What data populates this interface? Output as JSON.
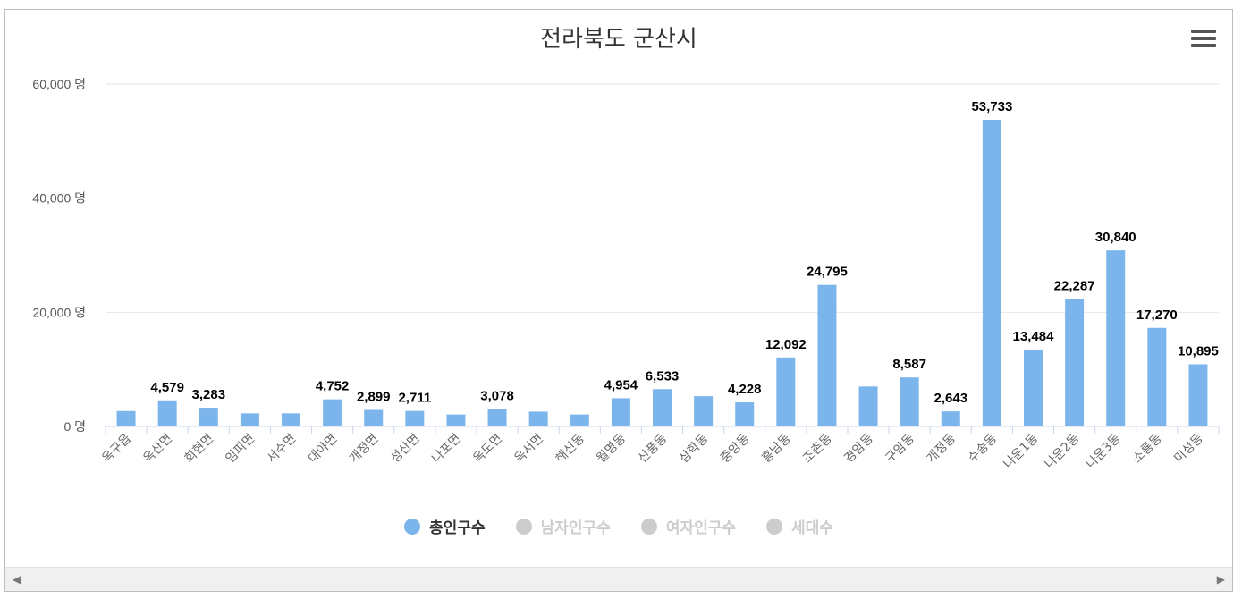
{
  "chart_data": {
    "type": "bar",
    "title": "전라북도 군산시",
    "categories": [
      "옥구읍",
      "옥산면",
      "회현면",
      "임피면",
      "서수면",
      "대야면",
      "개정면",
      "성산면",
      "나포면",
      "옥도면",
      "옥서면",
      "해신동",
      "월명동",
      "신풍동",
      "삼학동",
      "중앙동",
      "흥남동",
      "조촌동",
      "경암동",
      "구암동",
      "개정동",
      "수송동",
      "나운1동",
      "나운2동",
      "나운3동",
      "소룡동",
      "미성동"
    ],
    "series": [
      {
        "name": "총인구수",
        "color": "#7cb5ec",
        "values": [
          2700,
          4579,
          3283,
          2300,
          2300,
          4752,
          2899,
          2711,
          2100,
          3078,
          2600,
          2100,
          4954,
          6533,
          5300,
          4228,
          12092,
          24795,
          7000,
          8587,
          2643,
          53733,
          13484,
          22287,
          30840,
          17270,
          10895
        ]
      }
    ],
    "data_labels": [
      "",
      "4,579",
      "3,283",
      "",
      "",
      "4,752",
      "2,899",
      "2,711",
      "",
      "3,078",
      "",
      "",
      "4,954",
      "6,533",
      "",
      "4,228",
      "12,092",
      "24,795",
      "",
      "8,587",
      "2,643",
      "53,733",
      "13,484",
      "22,287",
      "30,840",
      "17,270",
      "10,895"
    ],
    "ylim": [
      0,
      60000
    ],
    "yticks": [
      0,
      20000,
      40000,
      60000
    ],
    "ytick_labels": [
      "0 명",
      "20,000 명",
      "40,000 명",
      "60,000 명"
    ],
    "grid": true,
    "legend_position": "bottom-center"
  },
  "legend": [
    {
      "label": "총인구수",
      "color": "#7cb5ec",
      "active": true
    },
    {
      "label": "남자인구수",
      "color": "#cccccc",
      "active": false
    },
    {
      "label": "여자인구수",
      "color": "#cccccc",
      "active": false
    },
    {
      "label": "세대수",
      "color": "#cccccc",
      "active": false
    }
  ],
  "menu_icon": "hamburger-menu-icon",
  "scrollbar": {
    "left_arrow": "◀",
    "right_arrow": "▶"
  }
}
